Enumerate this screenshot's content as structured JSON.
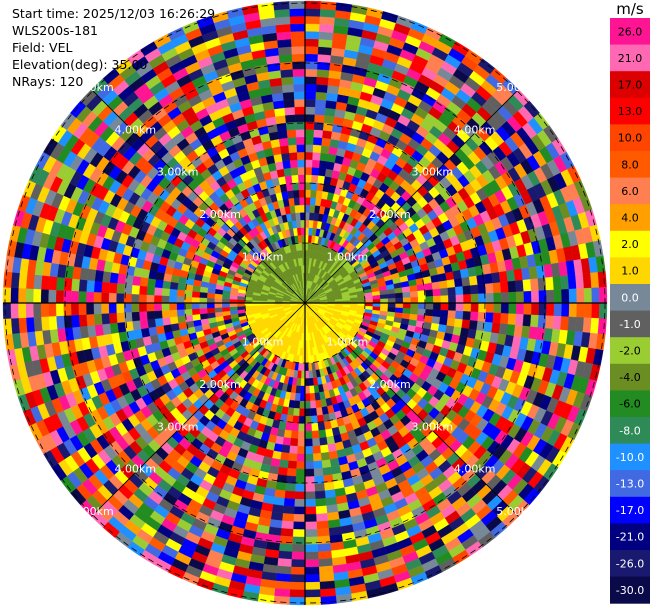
{
  "header": {
    "start_time": "Start time: 2025/12/03 16:26:29",
    "instrument": "WLS200s-181",
    "field": "Field: VEL",
    "elevation": "Elevation(deg): 35.00",
    "nrays": "NRays: 120"
  },
  "chart_data": {
    "type": "heatmap",
    "projection": "polar-ppi",
    "field": "VEL",
    "n_rays": 120,
    "range_rings_km": [
      1,
      2,
      3,
      4,
      5
    ],
    "range_ring_labels": [
      "1.00km",
      "2.00km",
      "3.00km",
      "4.00km",
      "5.00km"
    ],
    "max_range_km": 5.5,
    "colorbar": {
      "unit": "m/s",
      "tick_labels": [
        "26.0",
        "21.0",
        "17.0",
        "13.0",
        "10.0",
        "8.0",
        "6.0",
        "4.0",
        "2.0",
        "1.0",
        "0.0",
        "-1.0",
        "-2.0",
        "-4.0",
        "-6.0",
        "-8.0",
        "-10.0",
        "-13.0",
        "-17.0",
        "-21.0",
        "-26.0",
        "-30.0"
      ],
      "colors": [
        "#ff1493",
        "#ff69b4",
        "#dc0000",
        "#ff0000",
        "#ff4500",
        "#ff5a00",
        "#ff7f50",
        "#ffa000",
        "#ffff00",
        "#ffd700",
        "#778899",
        "#606060",
        "#9acd32",
        "#6b8e23",
        "#228b22",
        "#2e8b57",
        "#1e90ff",
        "#4169e1",
        "#0000ff",
        "#000080",
        "#191970",
        "#0a0a4a"
      ]
    }
  }
}
